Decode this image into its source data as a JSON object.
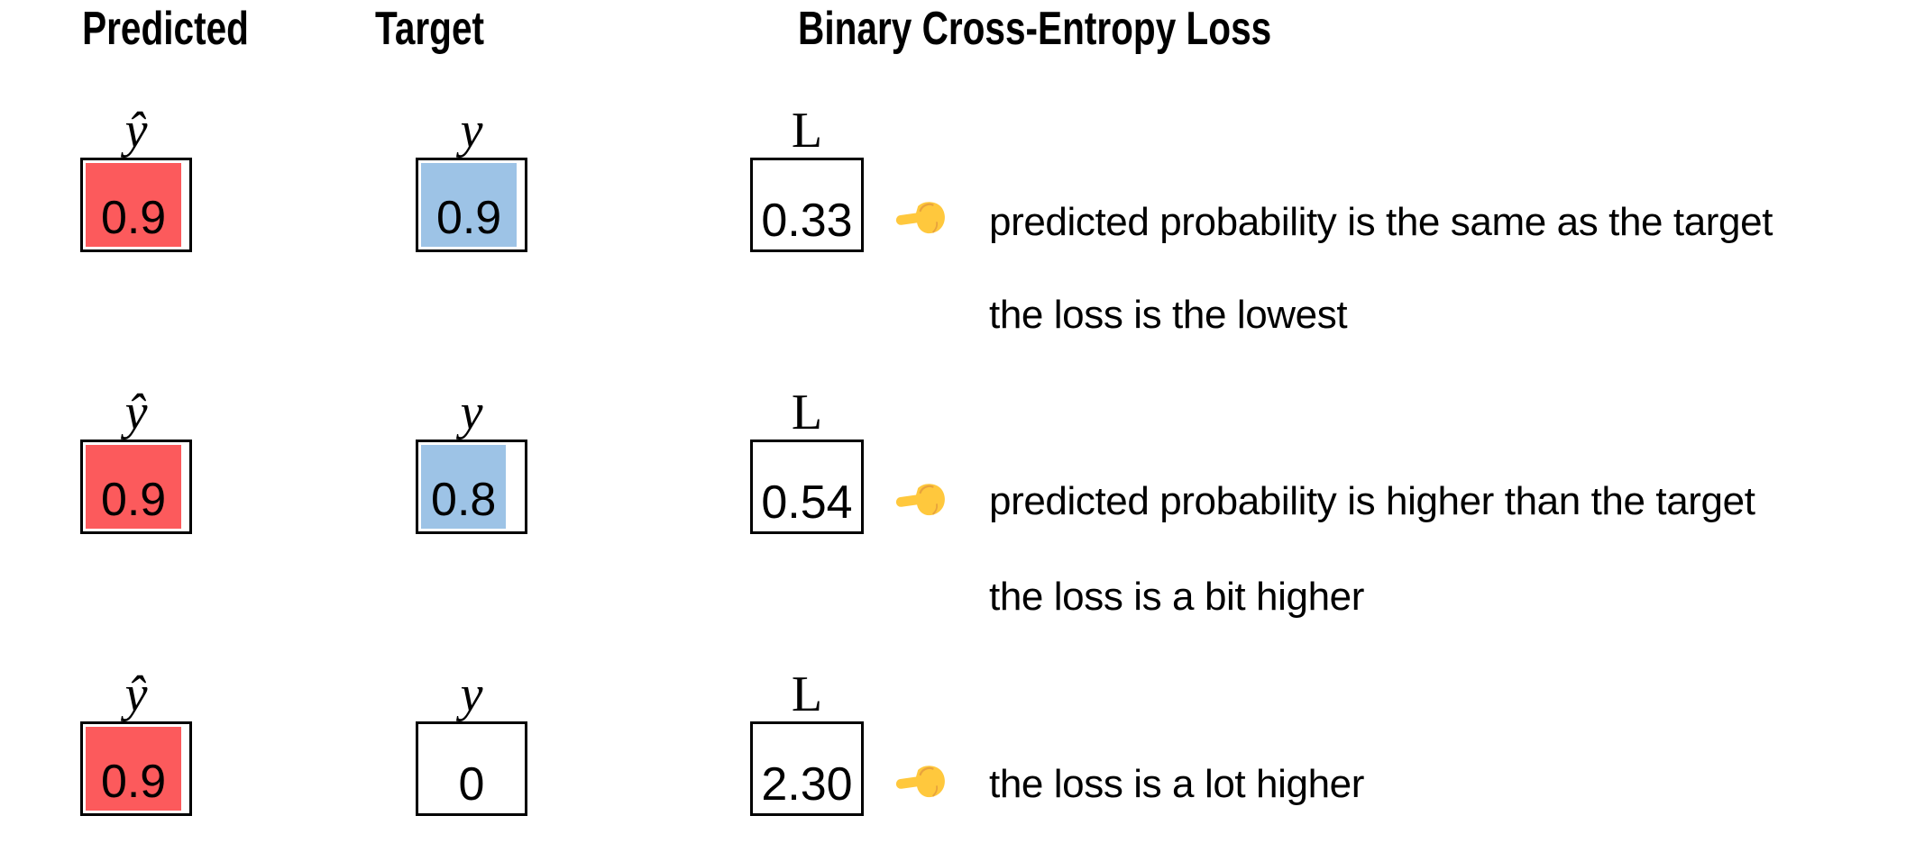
{
  "colors": {
    "predicted_fill": "#FC5A5C",
    "target_fill": "#9DC3E6",
    "box_border": "#000000",
    "hand": "#FFC83D",
    "hand_shade": "#E8A33D",
    "text": "#000000",
    "background": "#FFFFFF"
  },
  "headers": {
    "predicted": "Predicted",
    "target": "Target",
    "loss": "Binary Cross-Entropy Loss"
  },
  "symbols": {
    "predicted": "ŷ",
    "target": "y",
    "loss": "L"
  },
  "rows": [
    {
      "predicted": {
        "value": "0.9",
        "fill_pct": "90%"
      },
      "target": {
        "value": "0.9",
        "fill_pct": "90%"
      },
      "loss": {
        "value": "0.33"
      },
      "note_line1": "predicted probability is the same as the target",
      "note_line2": "the loss is the lowest"
    },
    {
      "predicted": {
        "value": "0.9",
        "fill_pct": "90%"
      },
      "target": {
        "value": "0.8",
        "fill_pct": "80%"
      },
      "loss": {
        "value": "0.54"
      },
      "note_line1": "predicted probability is higher than the target",
      "note_line2": "the loss is a bit higher"
    },
    {
      "predicted": {
        "value": "0.9",
        "fill_pct": "90%"
      },
      "target": {
        "value": "0",
        "fill_pct": "0%"
      },
      "loss": {
        "value": "2.30"
      },
      "note_line1": "the loss is a lot higher",
      "note_line2": ""
    }
  ]
}
